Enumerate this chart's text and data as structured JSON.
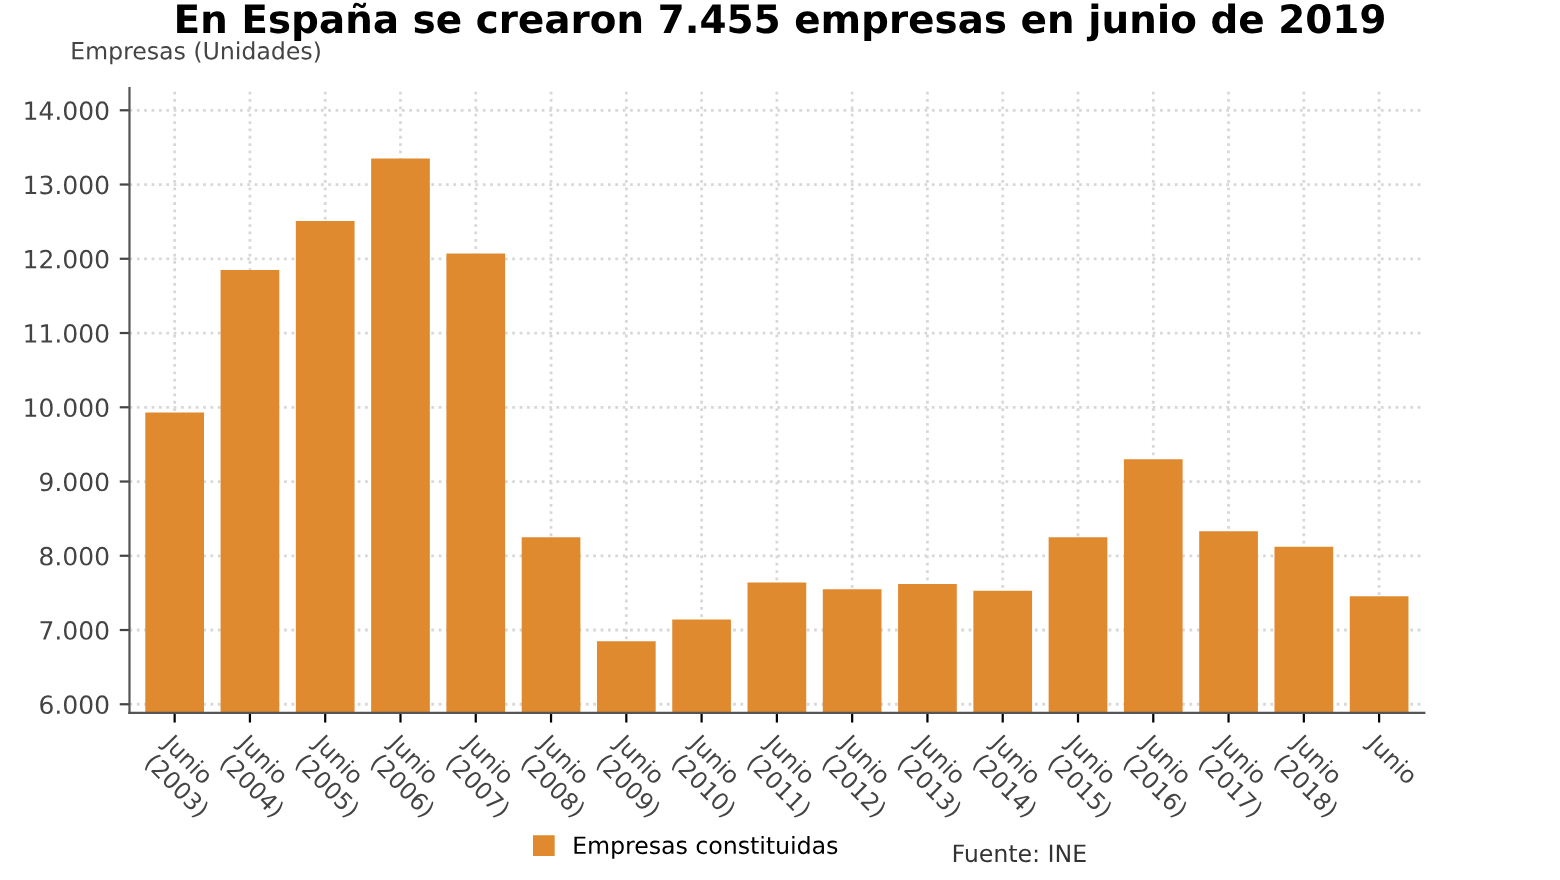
{
  "chart_data": {
    "type": "bar",
    "title": "En España se crearon 7.455 empresas en junio de 2019",
    "ylabel": "Empresas (Unidades)",
    "categories": [
      "Junio\n(2003)",
      "Junio\n(2004)",
      "Junio\n(2005)",
      "Junio\n(2006)",
      "Junio\n(2007)",
      "Junio\n(2008)",
      "Junio\n(2009)",
      "Junio\n(2010)",
      "Junio\n(2011)",
      "Junio\n(2012)",
      "Junio\n(2013)",
      "Junio\n(2014)",
      "Junio\n(2015)",
      "Junio\n(2016)",
      "Junio\n(2017)",
      "Junio\n(2018)",
      "Junio"
    ],
    "series": [
      {
        "name": "Empresas constituidas",
        "color": "#e08a30",
        "values": [
          9930,
          11850,
          12510,
          13350,
          12070,
          8250,
          6850,
          7140,
          7640,
          7550,
          7620,
          7530,
          8250,
          9300,
          8330,
          8120,
          7455
        ]
      }
    ],
    "ylim": [
      5885,
      14300
    ],
    "yticks": [
      {
        "value": 6000,
        "label": "6.000"
      },
      {
        "value": 7000,
        "label": "7.000"
      },
      {
        "value": 8000,
        "label": "8.000"
      },
      {
        "value": 9000,
        "label": "9.000"
      },
      {
        "value": 10000,
        "label": "10.000"
      },
      {
        "value": 11000,
        "label": "11.000"
      },
      {
        "value": 12000,
        "label": "12.000"
      },
      {
        "value": 13000,
        "label": "13.000"
      },
      {
        "value": 14000,
        "label": "14.000"
      }
    ],
    "grid": true,
    "legend": "bottom",
    "annotations": [
      "Fuente: INE"
    ]
  }
}
